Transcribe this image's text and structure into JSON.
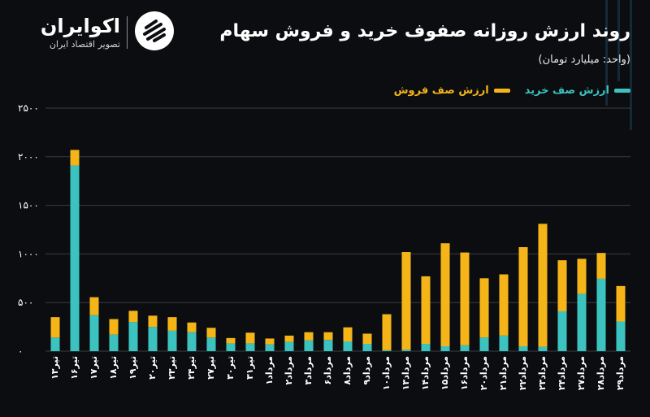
{
  "brand": {
    "name": "اکوایران",
    "tagline": "تصویر اقتصاد ایران"
  },
  "header": {
    "title": "روند ارزش روزانه صفوف خرید و فروش سهام",
    "subtitle": "(واحد: میلیارد تومان)"
  },
  "colors": {
    "buy": "#3cc3c0",
    "sell": "#f5b418",
    "grid": "#3a3d42",
    "axis_text": "#ffffff",
    "background": "#0b0d10"
  },
  "chart_data": {
    "type": "bar",
    "stacked": true,
    "ylim": [
      0,
      2500
    ],
    "yticks": [
      "۰",
      "۵۰۰",
      "۱۰۰۰",
      "۱۵۰۰",
      "۲۰۰۰",
      "۲۵۰۰"
    ],
    "ytick_values": [
      0,
      500,
      1000,
      1500,
      2000,
      2500
    ],
    "grid": true,
    "legend_position": "top-right",
    "categories": [
      "تیر۱۳",
      "تیر۱۶",
      "تیر۱۷",
      "تیر۱۸",
      "تیر۱۹",
      "تیر۲۰",
      "تیر۲۳",
      "تیر۲۴",
      "تیر۲۷",
      "تیر۳۰",
      "تیر۳۱",
      "مرداد۱",
      "مرداد۲",
      "مرداد۳",
      "مرداد۶",
      "مرداد۸",
      "مرداد۹",
      "مرداد۱۰",
      "مرداد۱۳",
      "مرداد۱۴",
      "مرداد۱۵",
      "مرداد۱۶",
      "مرداد۲۰",
      "مرداد۲۱",
      "مرداد۲۲",
      "مرداد۲۳",
      "مرداد۲۴",
      "مرداد۲۷",
      "مرداد۲۸",
      "مرداد۲۹"
    ],
    "series": [
      {
        "name": "ارزش صف خرید",
        "color": "#3cc3c0",
        "values": [
          140,
          1910,
          370,
          170,
          300,
          250,
          210,
          195,
          140,
          80,
          80,
          70,
          95,
          110,
          115,
          100,
          75,
          10,
          15,
          75,
          50,
          60,
          140,
          160,
          50,
          45,
          410,
          590,
          745,
          305
        ]
      },
      {
        "name": "ارزش صف فروش",
        "color": "#f5b418",
        "values": [
          210,
          160,
          185,
          160,
          115,
          115,
          140,
          100,
          100,
          55,
          110,
          60,
          65,
          85,
          80,
          145,
          105,
          370,
          1005,
          695,
          1060,
          955,
          610,
          630,
          1020,
          1265,
          525,
          360,
          265,
          365
        ]
      }
    ]
  }
}
